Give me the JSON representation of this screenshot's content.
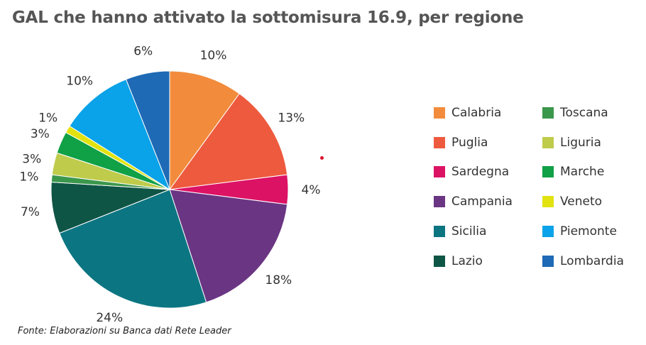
{
  "chart_data": {
    "type": "pie",
    "title": "GAL che hanno attivato la sottomisura 16.9, per regione",
    "source": "Fonte: Elaborazioni su Banca dati Rete Leader",
    "legend_position": "right",
    "slices": [
      {
        "name": "Calabria",
        "value": 10,
        "label": "10%",
        "color": "#F28C3C"
      },
      {
        "name": "Puglia",
        "value": 13,
        "label": "13%",
        "color": "#EE5A3E"
      },
      {
        "name": "Sardegna",
        "value": 4,
        "label": "4%",
        "color": "#DC1265"
      },
      {
        "name": "Campania",
        "value": 18,
        "label": "18%",
        "color": "#6A3583"
      },
      {
        "name": "Sicilia",
        "value": 24,
        "label": "24%",
        "color": "#0C7582"
      },
      {
        "name": "Lazio",
        "value": 7,
        "label": "7%",
        "color": "#0F5546"
      },
      {
        "name": "Toscana",
        "value": 1,
        "label": "1%",
        "color": "#3B974C"
      },
      {
        "name": "Liguria",
        "value": 3,
        "label": "3%",
        "color": "#BFCB4B"
      },
      {
        "name": "Marche",
        "value": 3,
        "label": "3%",
        "color": "#10A046"
      },
      {
        "name": "Veneto",
        "value": 1,
        "label": "1%",
        "color": "#E2E210"
      },
      {
        "name": "Piemonte",
        "value": 10,
        "label": "10%",
        "color": "#0AA2E8"
      },
      {
        "name": "Lombardia",
        "value": 6,
        "label": "6%",
        "color": "#1E6AB5"
      }
    ]
  }
}
